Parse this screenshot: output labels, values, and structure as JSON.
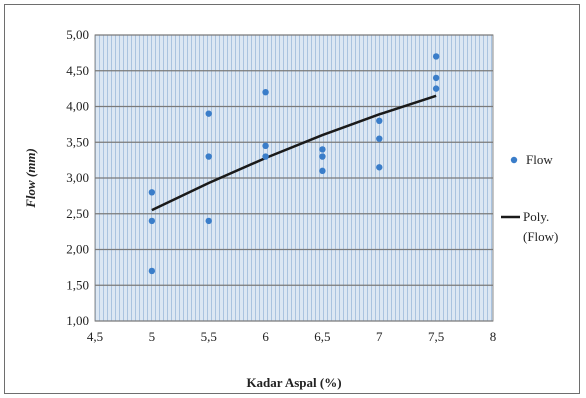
{
  "chart_data": {
    "type": "scatter",
    "xlabel": "Kadar Aspal (%)",
    "ylabel": "Flow (mm)",
    "xlim": [
      4.5,
      8
    ],
    "ylim": [
      1.0,
      5.0
    ],
    "xticks": [
      "4,5",
      "5",
      "5,5",
      "6",
      "6,5",
      "7",
      "7,5",
      "8"
    ],
    "yticks": [
      "1,00",
      "1,50",
      "2,00",
      "2,50",
      "3,00",
      "3,50",
      "4,00",
      "4,50",
      "5,00"
    ],
    "grid": true,
    "legend_position": "right",
    "series": [
      {
        "name": "Flow",
        "kind": "scatter",
        "color": "#3a7dc9",
        "points": [
          {
            "x": 5.0,
            "y": 2.8
          },
          {
            "x": 5.0,
            "y": 2.4
          },
          {
            "x": 5.0,
            "y": 1.7
          },
          {
            "x": 5.5,
            "y": 3.9
          },
          {
            "x": 5.5,
            "y": 3.3
          },
          {
            "x": 5.5,
            "y": 2.4
          },
          {
            "x": 6.0,
            "y": 4.2
          },
          {
            "x": 6.0,
            "y": 3.45
          },
          {
            "x": 6.0,
            "y": 3.3
          },
          {
            "x": 6.5,
            "y": 3.4
          },
          {
            "x": 6.5,
            "y": 3.3
          },
          {
            "x": 6.5,
            "y": 3.1
          },
          {
            "x": 7.0,
            "y": 3.8
          },
          {
            "x": 7.0,
            "y": 3.55
          },
          {
            "x": 7.0,
            "y": 3.15
          },
          {
            "x": 7.5,
            "y": 4.7
          },
          {
            "x": 7.5,
            "y": 4.4
          },
          {
            "x": 7.5,
            "y": 4.25
          }
        ]
      },
      {
        "name": "Poly. (Flow)",
        "kind": "line",
        "color": "#1a1a1a",
        "points": [
          {
            "x": 5.0,
            "y": 2.55
          },
          {
            "x": 5.5,
            "y": 2.93
          },
          {
            "x": 6.0,
            "y": 3.28
          },
          {
            "x": 6.5,
            "y": 3.6
          },
          {
            "x": 7.0,
            "y": 3.89
          },
          {
            "x": 7.5,
            "y": 4.15
          }
        ]
      }
    ],
    "legend": [
      {
        "label": "Flow",
        "marker": "dot"
      },
      {
        "label_line1": "Poly.",
        "label_line2": "(Flow)",
        "marker": "line"
      }
    ]
  }
}
